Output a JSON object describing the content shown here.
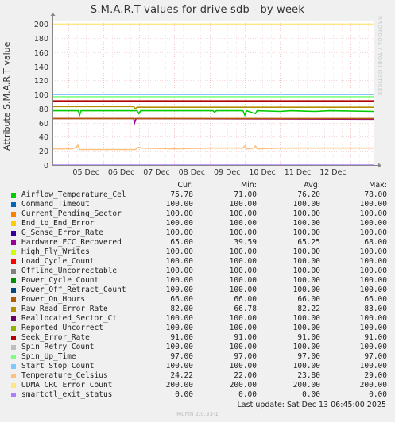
{
  "chart_data": {
    "type": "line",
    "title": "S.M.A.R.T values for drive sdb - by week",
    "ylabel": "Attribute S.M.A.R.T value",
    "ylim": [
      0,
      205
    ],
    "yticks": [
      0,
      20,
      40,
      60,
      80,
      100,
      120,
      140,
      160,
      180,
      200
    ],
    "grid": true,
    "x_range": [
      4.55,
      13.65
    ],
    "xticks": [
      {
        "label": "05 Dec",
        "pos": 5.0
      },
      {
        "label": "06 Dec",
        "pos": 6.0
      },
      {
        "label": "07 Dec",
        "pos": 7.0
      },
      {
        "label": "08 Dec",
        "pos": 8.0
      },
      {
        "label": "09 Dec",
        "pos": 9.0
      },
      {
        "label": "10 Dec",
        "pos": 10.0
      },
      {
        "label": "11 Dec",
        "pos": 11.0
      },
      {
        "label": "12 Dec",
        "pos": 12.0
      }
    ],
    "columns": [
      "Cur:",
      "Min:",
      "Avg:",
      "Max:"
    ],
    "series": [
      {
        "name": "Airflow_Temperature_Cel",
        "color": "#00cc00",
        "values": [
          "75.78",
          "71.00",
          "76.20",
          "78.00"
        ],
        "draw": [
          [
            4.55,
            77
          ],
          [
            5.28,
            77
          ],
          [
            5.32,
            71
          ],
          [
            5.36,
            77
          ],
          [
            6.95,
            77
          ],
          [
            7.0,
            73
          ],
          [
            7.05,
            77
          ],
          [
            9.1,
            77
          ],
          [
            9.14,
            75
          ],
          [
            9.2,
            77
          ],
          [
            9.95,
            77
          ],
          [
            10.0,
            71
          ],
          [
            10.05,
            77
          ],
          [
            10.3,
            73
          ],
          [
            10.35,
            77
          ],
          [
            11.0,
            76
          ],
          [
            11.3,
            77
          ],
          [
            12.0,
            76
          ],
          [
            12.4,
            77
          ],
          [
            13.65,
            76
          ]
        ]
      },
      {
        "name": "Command_Timeout",
        "color": "#0066b3",
        "values": [
          "100.00",
          "100.00",
          "100.00",
          "100.00"
        ],
        "draw": [
          [
            4.55,
            100
          ],
          [
            13.65,
            100
          ]
        ]
      },
      {
        "name": "Current_Pending_Sector",
        "color": "#ff8000",
        "values": [
          "100.00",
          "100.00",
          "100.00",
          "100.00"
        ],
        "draw": [
          [
            4.55,
            100
          ],
          [
            13.65,
            100
          ]
        ]
      },
      {
        "name": "End_to_End_Error",
        "color": "#ffcc00",
        "values": [
          "100.00",
          "100.00",
          "100.00",
          "100.00"
        ],
        "draw": [
          [
            4.55,
            100
          ],
          [
            13.65,
            100
          ]
        ]
      },
      {
        "name": "G_Sense_Error_Rate",
        "color": "#330099",
        "values": [
          "100.00",
          "100.00",
          "100.00",
          "100.00"
        ],
        "draw": [
          [
            4.55,
            100
          ],
          [
            13.65,
            100
          ]
        ]
      },
      {
        "name": "Hardware_ECC_Recovered",
        "color": "#990099",
        "values": [
          "65.00",
          "39.59",
          "65.25",
          "68.00"
        ],
        "draw": [
          [
            4.55,
            66
          ],
          [
            6.85,
            66
          ],
          [
            6.88,
            60
          ],
          [
            6.92,
            66
          ],
          [
            13.65,
            65
          ]
        ]
      },
      {
        "name": "High_Fly_Writes",
        "color": "#ccff00",
        "values": [
          "100.00",
          "100.00",
          "100.00",
          "100.00"
        ],
        "draw": [
          [
            4.55,
            100
          ],
          [
            13.65,
            100
          ]
        ]
      },
      {
        "name": "Load_Cycle_Count",
        "color": "#ff0000",
        "values": [
          "100.00",
          "100.00",
          "100.00",
          "100.00"
        ],
        "draw": [
          [
            4.55,
            100
          ],
          [
            13.65,
            100
          ]
        ]
      },
      {
        "name": "Offline_Uncorrectable",
        "color": "#808080",
        "values": [
          "100.00",
          "100.00",
          "100.00",
          "100.00"
        ],
        "draw": [
          [
            4.55,
            100
          ],
          [
            13.65,
            100
          ]
        ]
      },
      {
        "name": "Power_Cycle_Count",
        "color": "#008f00",
        "values": [
          "100.00",
          "100.00",
          "100.00",
          "100.00"
        ],
        "draw": [
          [
            4.55,
            100
          ],
          [
            13.65,
            100
          ]
        ]
      },
      {
        "name": "Power_Off_Retract_Count",
        "color": "#00487d",
        "values": [
          "100.00",
          "100.00",
          "100.00",
          "100.00"
        ],
        "draw": [
          [
            4.55,
            100
          ],
          [
            13.65,
            100
          ]
        ]
      },
      {
        "name": "Power_On_Hours",
        "color": "#b35a00",
        "values": [
          "66.00",
          "66.00",
          "66.00",
          "66.00"
        ],
        "draw": [
          [
            4.55,
            66
          ],
          [
            13.65,
            66
          ]
        ]
      },
      {
        "name": "Raw_Read_Error_Rate",
        "color": "#b38f00",
        "values": [
          "82.00",
          "66.78",
          "82.22",
          "83.00"
        ],
        "draw": [
          [
            4.55,
            83
          ],
          [
            6.85,
            83
          ],
          [
            6.9,
            80
          ],
          [
            6.95,
            82
          ],
          [
            13.65,
            82
          ]
        ]
      },
      {
        "name": "Reallocated_Sector_Ct",
        "color": "#6b006b",
        "values": [
          "100.00",
          "100.00",
          "100.00",
          "100.00"
        ],
        "draw": [
          [
            4.55,
            100
          ],
          [
            13.65,
            100
          ]
        ]
      },
      {
        "name": "Reported_Uncorrect",
        "color": "#8fb300",
        "values": [
          "100.00",
          "100.00",
          "100.00",
          "100.00"
        ],
        "draw": [
          [
            4.55,
            100
          ],
          [
            13.65,
            100
          ]
        ]
      },
      {
        "name": "Seek_Error_Rate",
        "color": "#b30000",
        "values": [
          "91.00",
          "91.00",
          "91.00",
          "91.00"
        ],
        "draw": [
          [
            4.55,
            91
          ],
          [
            13.65,
            91
          ]
        ]
      },
      {
        "name": "Spin_Retry_Count",
        "color": "#bebebe",
        "values": [
          "100.00",
          "100.00",
          "100.00",
          "100.00"
        ],
        "draw": [
          [
            4.55,
            100
          ],
          [
            13.65,
            100
          ]
        ]
      },
      {
        "name": "Spin_Up_Time",
        "color": "#80ff80",
        "values": [
          "97.00",
          "97.00",
          "97.00",
          "97.00"
        ],
        "draw": [
          [
            4.55,
            97
          ],
          [
            13.65,
            97
          ]
        ]
      },
      {
        "name": "Start_Stop_Count",
        "color": "#80c9ff",
        "values": [
          "100.00",
          "100.00",
          "100.00",
          "100.00"
        ],
        "draw": [
          [
            4.55,
            100
          ],
          [
            13.65,
            100
          ]
        ]
      },
      {
        "name": "Temperature_Celsius",
        "color": "#ffc080",
        "values": [
          "24.22",
          "22.00",
          "23.80",
          "29.00"
        ],
        "draw": [
          [
            4.55,
            23
          ],
          [
            5.1,
            23
          ],
          [
            5.22,
            25
          ],
          [
            5.27,
            28
          ],
          [
            5.32,
            22
          ],
          [
            5.5,
            22
          ],
          [
            6.6,
            22
          ],
          [
            6.9,
            22
          ],
          [
            6.98,
            25
          ],
          [
            7.1,
            24
          ],
          [
            8.0,
            23
          ],
          [
            9.0,
            24
          ],
          [
            9.95,
            24
          ],
          [
            10.0,
            27
          ],
          [
            10.06,
            23
          ],
          [
            10.25,
            24
          ],
          [
            10.3,
            27
          ],
          [
            10.36,
            23
          ],
          [
            11.0,
            24
          ],
          [
            12.0,
            24
          ],
          [
            13.65,
            24
          ]
        ]
      },
      {
        "name": "UDMA_CRC_Error_Count",
        "color": "#ffe680",
        "values": [
          "200.00",
          "200.00",
          "200.00",
          "200.00"
        ],
        "draw": [
          [
            4.55,
            200
          ],
          [
            13.65,
            200
          ]
        ]
      },
      {
        "name": "smartctl_exit_status",
        "color": "#aa80ff",
        "values": [
          "0.00",
          "0.00",
          "0.00",
          "0.00"
        ],
        "draw": [
          [
            4.55,
            0
          ],
          [
            13.65,
            0
          ]
        ]
      }
    ]
  },
  "last_update": "Last update:  Sat Dec 13 06:45:00 2025",
  "watermark": "RRDTOOL / TOBI OETIKER",
  "footer": "Munin 2.0.33-1"
}
